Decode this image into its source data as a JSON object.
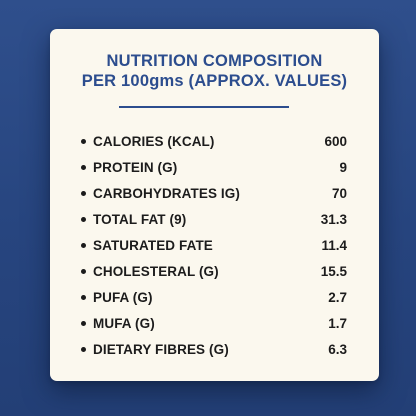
{
  "colors": {
    "background": "#2a4884",
    "card": "#fbf8ee",
    "title": "#2c4d8e",
    "text": "#1c1c1c"
  },
  "card": {
    "title_line1": "NUTRITION COMPOSITION",
    "title_line2": "PER 100gms (APPROX. VALUES)",
    "items": [
      {
        "label": "CALORIES (KCAL)",
        "value": "600"
      },
      {
        "label": "PROTEIN (G)",
        "value": "9"
      },
      {
        "label": "CARBOHYDRATES IG)",
        "value": "70"
      },
      {
        "label": "TOTAL FAT (9)",
        "value": "31.3"
      },
      {
        "label": "SATURATED FATE",
        "value": "11.4"
      },
      {
        "label": "CHOLESTERAL (G)",
        "value": "15.5"
      },
      {
        "label": "PUFA (G)",
        "value": "2.7"
      },
      {
        "label": "MUFA (G)",
        "value": "1.7"
      },
      {
        "label": "DIETARY FIBRES (G)",
        "value": "6.3"
      }
    ]
  }
}
